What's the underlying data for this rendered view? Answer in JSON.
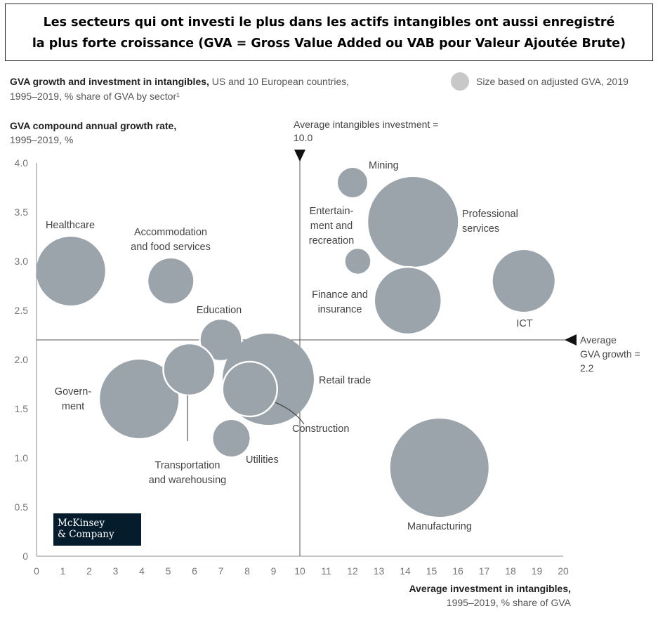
{
  "banner": {
    "line1": "Les secteurs qui ont investi le plus dans les actifs intangibles ont aussi enregistré",
    "line2": "la plus forte croissance (GVA = Gross Value Added ou VAB pour Valeur Ajoutée Brute)"
  },
  "subtitle": {
    "bold": "GVA growth and investment in intangibles,",
    "rest1": " US and 10 European countries,",
    "line2": "1995–2019, % share of GVA by sector¹"
  },
  "size_legend": "Size based on adjusted GVA, 2019",
  "y_axis_title": {
    "bold": "GVA compound annual growth rate,",
    "line2": "1995–2019, %"
  },
  "x_axis_title": {
    "bold": "Average investment in intangibles,",
    "line2": "1995–2019, % share of GVA"
  },
  "reference_lines": {
    "vertical": {
      "label1": "Average intangibles investment =",
      "label2": "10.0",
      "value": 10.0
    },
    "horizontal": {
      "label1": "Average",
      "label2": "GVA growth =",
      "label3": "2.2",
      "value": 2.2
    }
  },
  "logo": {
    "line1": "McKinsey",
    "line2": "& Company"
  },
  "colors": {
    "bubble": "#9ba3ab",
    "axis": "#888888",
    "ref": "#555555"
  },
  "chart_data": {
    "type": "scatter",
    "xlim": [
      0,
      20
    ],
    "ylim": [
      0,
      4.0
    ],
    "x_ticks": [
      "0",
      "1",
      "2",
      "3",
      "4",
      "5",
      "6",
      "7",
      "8",
      "9",
      "10",
      "11",
      "12",
      "13",
      "14",
      "15",
      "16",
      "17",
      "18",
      "19",
      "20"
    ],
    "y_ticks": [
      "0",
      "0.5",
      "1.0",
      "1.5",
      "2.0",
      "2.5",
      "3.0",
      "3.5",
      "4.0"
    ],
    "points": [
      {
        "name": "Healthcare",
        "lines": [
          "Healthcare"
        ],
        "x": 1.3,
        "y": 2.9,
        "size": 49
      },
      {
        "name": "Accommodation and food services",
        "lines": [
          "Accommodation",
          "and food services"
        ],
        "x": 5.1,
        "y": 2.8,
        "size": 32
      },
      {
        "name": "Education",
        "lines": [
          "Education"
        ],
        "x": 7.0,
        "y": 2.2,
        "size": 30
      },
      {
        "name": "Government",
        "lines": [
          "Govern-",
          "ment"
        ],
        "x": 3.9,
        "y": 1.6,
        "size": 56
      },
      {
        "name": "Transportation and warehousing",
        "lines": [
          "Transportation",
          "and warehousing"
        ],
        "x": 5.8,
        "y": 1.9,
        "size": 37
      },
      {
        "name": "Retail trade",
        "lines": [
          "Retail trade"
        ],
        "x": 8.8,
        "y": 1.8,
        "size": 65
      },
      {
        "name": "Construction",
        "lines": [
          "Construction"
        ],
        "x": 8.1,
        "y": 1.7,
        "size": 39
      },
      {
        "name": "Utilities",
        "lines": [
          "Utilities"
        ],
        "x": 7.4,
        "y": 1.2,
        "size": 26
      },
      {
        "name": "Mining",
        "lines": [
          "Mining"
        ],
        "x": 12.0,
        "y": 3.8,
        "size": 21
      },
      {
        "name": "Entertainment and recreation",
        "lines": [
          "Entertain-",
          "ment and",
          "recreation"
        ],
        "x": 12.2,
        "y": 3.0,
        "size": 19
      },
      {
        "name": "Professional services",
        "lines": [
          "Professional",
          "services"
        ],
        "x": 14.3,
        "y": 3.4,
        "size": 64
      },
      {
        "name": "Finance and insurance",
        "lines": [
          "Finance and",
          "insurance"
        ],
        "x": 14.1,
        "y": 2.6,
        "size": 48
      },
      {
        "name": "ICT",
        "lines": [
          "ICT"
        ],
        "x": 18.5,
        "y": 2.8,
        "size": 44
      },
      {
        "name": "Manufacturing",
        "lines": [
          "Manufacturing"
        ],
        "x": 15.3,
        "y": 0.9,
        "size": 70
      }
    ]
  }
}
